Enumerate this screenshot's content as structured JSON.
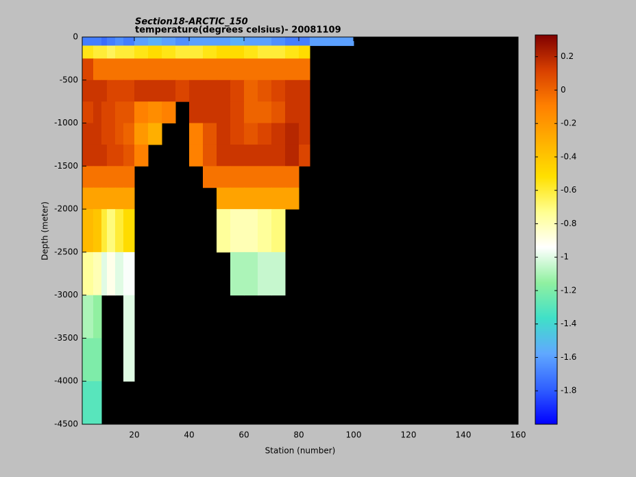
{
  "chart_data": {
    "type": "heatmap",
    "title": "Section18-ARCTIC_150",
    "subtitle": "temperature(degrees  celsius)- 20081109",
    "x_label": "Station (number)",
    "y_label": "Depth (meter)",
    "x": [
      1,
      5,
      8,
      10,
      13,
      16,
      20,
      25,
      30,
      35,
      40,
      45,
      50,
      55,
      60,
      65,
      70,
      75,
      80,
      84,
      90,
      100,
      120,
      140,
      160
    ],
    "y": [
      0,
      -100,
      -250,
      -500,
      -750,
      -1000,
      -1250,
      -1500,
      -1750,
      -2000,
      -2500,
      -3000,
      -3500,
      -4000,
      -4500
    ],
    "values": [
      [
        -1.7,
        -1.7,
        -1.75,
        -1.7,
        -1.65,
        -1.7,
        -1.6,
        -1.55,
        -1.6,
        -1.65,
        -1.6,
        -1.6,
        -1.6,
        -1.55,
        -1.6,
        -1.6,
        -1.65,
        -1.7,
        -1.7,
        -1.6,
        -1.6,
        null,
        null,
        null
      ],
      [
        -0.55,
        -0.6,
        -0.6,
        -0.65,
        -0.6,
        -0.6,
        -0.55,
        -0.5,
        -0.55,
        -0.6,
        -0.6,
        -0.55,
        -0.5,
        -0.5,
        -0.55,
        -0.6,
        -0.6,
        -0.55,
        -0.5,
        null,
        null,
        null,
        null,
        null
      ],
      [
        0.1,
        -0.05,
        -0.05,
        -0.05,
        -0.05,
        -0.05,
        -0.05,
        -0.05,
        -0.05,
        -0.05,
        -0.05,
        -0.05,
        -0.05,
        -0.05,
        -0.05,
        -0.05,
        -0.05,
        -0.05,
        -0.05,
        null,
        null,
        null,
        null,
        null
      ],
      [
        0.15,
        0.15,
        0.15,
        0.1,
        0.1,
        0.1,
        0.15,
        0.15,
        0.15,
        0.1,
        0.15,
        0.15,
        0.15,
        0.1,
        0.0,
        0.05,
        0.1,
        0.15,
        0.15,
        null,
        null,
        null,
        null,
        null
      ],
      [
        0.1,
        0.15,
        0.1,
        0.1,
        0.05,
        0.05,
        -0.1,
        -0.15,
        -0.1,
        null,
        0.15,
        0.15,
        0.15,
        0.1,
        0.0,
        0.0,
        0.05,
        0.15,
        0.15,
        null,
        null,
        null,
        null,
        null
      ],
      [
        0.15,
        0.15,
        0.1,
        0.1,
        0.05,
        0.0,
        -0.2,
        -0.3,
        null,
        null,
        -0.1,
        0.05,
        0.15,
        0.1,
        0.05,
        0.1,
        0.15,
        0.2,
        0.15,
        null,
        null,
        null,
        null,
        null
      ],
      [
        0.15,
        0.15,
        0.15,
        0.1,
        0.1,
        0.05,
        -0.1,
        null,
        null,
        null,
        -0.1,
        0.05,
        0.15,
        0.15,
        0.15,
        0.15,
        0.15,
        0.2,
        0.1,
        null,
        null,
        null,
        null,
        null
      ],
      [
        -0.05,
        -0.05,
        -0.05,
        -0.05,
        -0.05,
        -0.05,
        null,
        null,
        null,
        null,
        null,
        -0.05,
        -0.05,
        -0.05,
        -0.05,
        -0.05,
        -0.05,
        -0.05,
        null,
        null,
        null,
        null,
        null,
        null
      ],
      [
        -0.25,
        -0.25,
        -0.25,
        -0.25,
        -0.25,
        -0.25,
        null,
        null,
        null,
        null,
        null,
        null,
        -0.25,
        -0.25,
        -0.25,
        -0.25,
        -0.25,
        -0.25,
        null,
        null,
        null,
        null,
        null,
        null
      ],
      [
        -0.35,
        -0.4,
        -0.6,
        -0.7,
        -0.6,
        -0.5,
        null,
        null,
        null,
        null,
        null,
        null,
        -0.75,
        -0.8,
        -0.8,
        -0.75,
        -0.7,
        null,
        null,
        null,
        null,
        null,
        null,
        null
      ],
      [
        -0.75,
        -0.8,
        -1.0,
        -0.9,
        -1.0,
        -0.95,
        null,
        null,
        null,
        null,
        null,
        null,
        null,
        -1.1,
        -1.1,
        -1.05,
        -1.05,
        null,
        null,
        null,
        null,
        null,
        null,
        null
      ],
      [
        -1.1,
        -1.15,
        null,
        null,
        null,
        -1.0,
        null,
        null,
        null,
        null,
        null,
        null,
        null,
        null,
        null,
        null,
        null,
        null,
        null,
        null,
        null,
        null,
        null,
        null
      ],
      [
        -1.2,
        -1.2,
        null,
        null,
        null,
        -1.0,
        null,
        null,
        null,
        null,
        null,
        null,
        null,
        null,
        null,
        null,
        null,
        null,
        null,
        null,
        null,
        null,
        null,
        null
      ],
      [
        -1.3,
        -1.3,
        null,
        null,
        null,
        null,
        null,
        null,
        null,
        null,
        null,
        null,
        null,
        null,
        null,
        null,
        null,
        null,
        null,
        null,
        null,
        null,
        null,
        null
      ]
    ],
    "xlim": [
      1,
      160
    ],
    "xticks": [
      20,
      40,
      60,
      80,
      100,
      120,
      140,
      160
    ],
    "ylim": [
      -4500,
      0
    ],
    "yticks": [
      0,
      -500,
      -1000,
      -1500,
      -2000,
      -2500,
      -3000,
      -3500,
      -4000,
      -4500
    ],
    "clim": [
      -2,
      0.33
    ],
    "colorbar_ticks": [
      0.2,
      0,
      -0.2,
      -0.4,
      -0.6,
      -0.8,
      -1,
      -1.2,
      -1.4,
      -1.6,
      -1.8
    ],
    "colormap": [
      "#0000ff",
      "#3060ff",
      "#60a8ff",
      "#40e0c8",
      "#90f0a0",
      "#ffffff",
      "#ffff90",
      "#ffe000",
      "#ffb000",
      "#ff8000",
      "#d84000",
      "#800000"
    ],
    "nan_color": "#000000"
  }
}
